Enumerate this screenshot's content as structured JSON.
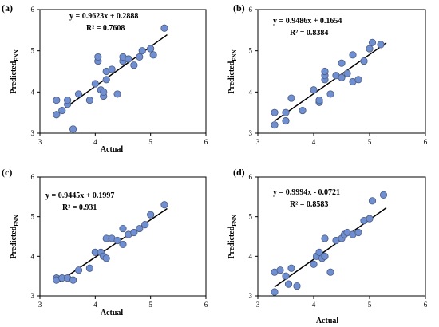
{
  "figure": {
    "marker_color": "#6f8fd0",
    "marker_edge": "#4a5a80",
    "line_color": "#000000"
  },
  "chart_data": [
    {
      "type": "scatter",
      "panel_label": "(a)",
      "xlabel": "Actual",
      "ylabel_main": "Predicted",
      "ylabel_sub": "FNN",
      "xlim": [
        3,
        6
      ],
      "ylim": [
        3,
        6
      ],
      "xticks": [
        "3",
        "4",
        "5",
        "6"
      ],
      "yticks": [
        "3",
        "4",
        "5",
        "6"
      ],
      "equation": "y = 0.9623x + 0.2888",
      "r2": "R² = 0.7608",
      "fit": {
        "slope": 0.9623,
        "intercept": 0.2888,
        "x_range": [
          3.3,
          5.3
        ]
      },
      "points": [
        [
          3.3,
          3.45
        ],
        [
          3.3,
          3.8
        ],
        [
          3.4,
          3.55
        ],
        [
          3.5,
          3.7
        ],
        [
          3.5,
          3.8
        ],
        [
          3.6,
          3.1
        ],
        [
          3.7,
          3.95
        ],
        [
          3.9,
          3.8
        ],
        [
          4.0,
          4.2
        ],
        [
          4.05,
          4.75
        ],
        [
          4.05,
          4.85
        ],
        [
          4.1,
          4.05
        ],
        [
          4.15,
          3.9
        ],
        [
          4.15,
          4.0
        ],
        [
          4.2,
          4.3
        ],
        [
          4.2,
          4.5
        ],
        [
          4.3,
          4.55
        ],
        [
          4.4,
          3.95
        ],
        [
          4.5,
          4.75
        ],
        [
          4.5,
          4.85
        ],
        [
          4.6,
          4.8
        ],
        [
          4.7,
          4.65
        ],
        [
          4.8,
          4.85
        ],
        [
          4.85,
          5.0
        ],
        [
          5.0,
          5.05
        ],
        [
          5.05,
          4.9
        ],
        [
          5.25,
          5.55
        ]
      ]
    },
    {
      "type": "scatter",
      "panel_label": "(b)",
      "xlabel": "",
      "ylabel_main": "Predicted",
      "ylabel_sub": "FNN",
      "xlim": [
        3,
        6
      ],
      "ylim": [
        3,
        6
      ],
      "xticks": [
        "3",
        "4",
        "5",
        "6"
      ],
      "yticks": [
        "3",
        "4",
        "5",
        "6"
      ],
      "equation": "y = 0.9486x + 0.1654",
      "r2": "R² = 0.8384",
      "fit": {
        "slope": 0.9486,
        "intercept": 0.1654,
        "x_range": [
          3.3,
          5.3
        ]
      },
      "points": [
        [
          3.3,
          3.2
        ],
        [
          3.3,
          3.5
        ],
        [
          3.5,
          3.3
        ],
        [
          3.5,
          3.5
        ],
        [
          3.6,
          3.85
        ],
        [
          3.8,
          3.55
        ],
        [
          4.0,
          4.05
        ],
        [
          4.1,
          3.75
        ],
        [
          4.1,
          3.8
        ],
        [
          4.2,
          4.3
        ],
        [
          4.2,
          4.4
        ],
        [
          4.2,
          4.5
        ],
        [
          4.3,
          3.95
        ],
        [
          4.4,
          4.4
        ],
        [
          4.5,
          4.35
        ],
        [
          4.5,
          4.7
        ],
        [
          4.6,
          4.45
        ],
        [
          4.7,
          4.25
        ],
        [
          4.7,
          4.9
        ],
        [
          4.8,
          4.3
        ],
        [
          4.9,
          4.75
        ],
        [
          5.0,
          5.05
        ],
        [
          5.05,
          5.2
        ],
        [
          5.2,
          5.15
        ]
      ]
    },
    {
      "type": "scatter",
      "panel_label": "(c)",
      "xlabel": "Actual",
      "ylabel_main": "Predicted",
      "ylabel_sub": "FNN",
      "xlim": [
        3,
        6
      ],
      "ylim": [
        3,
        6
      ],
      "xticks": [
        "3",
        "4",
        "5",
        "6"
      ],
      "yticks": [
        "3",
        "4",
        "5",
        "6"
      ],
      "equation": "y = 0.9445x + 0.1997",
      "r2": "R² = 0.931",
      "fit": {
        "slope": 0.9445,
        "intercept": 0.1997,
        "x_range": [
          3.3,
          5.3
        ]
      },
      "points": [
        [
          3.3,
          3.45
        ],
        [
          3.3,
          3.4
        ],
        [
          3.4,
          3.45
        ],
        [
          3.5,
          3.45
        ],
        [
          3.6,
          3.4
        ],
        [
          3.7,
          3.65
        ],
        [
          3.9,
          3.7
        ],
        [
          4.0,
          4.1
        ],
        [
          4.1,
          4.1
        ],
        [
          4.15,
          4.0
        ],
        [
          4.2,
          4.45
        ],
        [
          4.2,
          3.95
        ],
        [
          4.3,
          4.45
        ],
        [
          4.4,
          4.4
        ],
        [
          4.5,
          4.3
        ],
        [
          4.5,
          4.7
        ],
        [
          4.6,
          4.55
        ],
        [
          4.7,
          4.6
        ],
        [
          4.8,
          4.7
        ],
        [
          4.9,
          4.8
        ],
        [
          5.0,
          5.05
        ],
        [
          5.25,
          5.3
        ]
      ]
    },
    {
      "type": "scatter",
      "panel_label": "(d)",
      "xlabel": "Actual",
      "ylabel_main": "Predicted",
      "ylabel_sub": "FNN",
      "xlim": [
        3,
        6
      ],
      "ylim": [
        3,
        6
      ],
      "xticks": [
        "3",
        "4",
        "5",
        "6"
      ],
      "yticks": [
        "3",
        "4",
        "5",
        "6"
      ],
      "equation": "y = 0.9994x - 0.0721",
      "r2": "R² = 0.8583",
      "fit": {
        "slope": 0.9994,
        "intercept": -0.0721,
        "x_range": [
          3.3,
          5.3
        ]
      },
      "points": [
        [
          3.3,
          3.1
        ],
        [
          3.3,
          3.6
        ],
        [
          3.4,
          3.65
        ],
        [
          3.5,
          3.5
        ],
        [
          3.55,
          3.3
        ],
        [
          3.6,
          3.7
        ],
        [
          3.7,
          3.25
        ],
        [
          4.0,
          3.8
        ],
        [
          4.05,
          4.0
        ],
        [
          4.1,
          4.1
        ],
        [
          4.15,
          3.95
        ],
        [
          4.2,
          4.0
        ],
        [
          4.2,
          4.45
        ],
        [
          4.3,
          3.6
        ],
        [
          4.4,
          4.4
        ],
        [
          4.5,
          4.45
        ],
        [
          4.55,
          4.55
        ],
        [
          4.6,
          4.6
        ],
        [
          4.7,
          4.55
        ],
        [
          4.8,
          4.6
        ],
        [
          4.9,
          4.9
        ],
        [
          5.0,
          4.95
        ],
        [
          5.05,
          5.4
        ],
        [
          5.25,
          5.55
        ]
      ]
    }
  ]
}
